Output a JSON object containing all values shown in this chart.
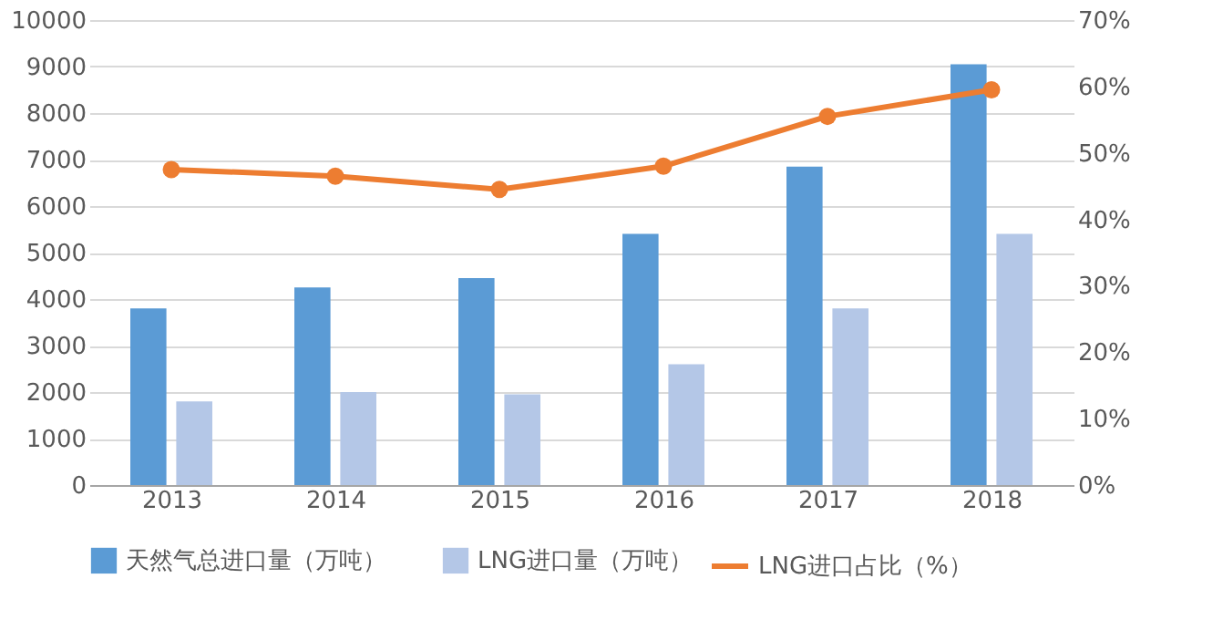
{
  "chart_data": {
    "type": "bar",
    "categories": [
      "2013",
      "2014",
      "2015",
      "2016",
      "2017",
      "2018"
    ],
    "series": [
      {
        "name": "天然气总进口量（万吨）",
        "color": "#5b9bd5",
        "values": [
          3800,
          4250,
          4450,
          5400,
          6850,
          9050
        ]
      },
      {
        "name": "LNG进口量（万吨）",
        "color": "#b4c7e7",
        "values": [
          1800,
          2000,
          1950,
          2600,
          3800,
          5400
        ]
      },
      {
        "name": "LNG进口占比（%）",
        "type": "line",
        "axis": "y2",
        "marker": "circle",
        "color": "#ed7d31",
        "values": [
          47.5,
          46.5,
          44.5,
          48,
          55.5,
          59.5
        ]
      }
    ],
    "ylim": [
      0,
      10000
    ],
    "yticks": [
      0,
      1000,
      2000,
      3000,
      4000,
      5000,
      6000,
      7000,
      8000,
      9000,
      10000
    ],
    "y2lim": [
      0,
      70
    ],
    "y2ticks": [
      {
        "value": 0,
        "label": "0%"
      },
      {
        "value": 10,
        "label": "10%"
      },
      {
        "value": 20,
        "label": "20%"
      },
      {
        "value": 30,
        "label": "30%"
      },
      {
        "value": 40,
        "label": "40%"
      },
      {
        "value": 50,
        "label": "50%"
      },
      {
        "value": 60,
        "label": "60%"
      },
      {
        "value": 70,
        "label": "70%"
      }
    ],
    "grid": "y",
    "legend": "bottom"
  }
}
